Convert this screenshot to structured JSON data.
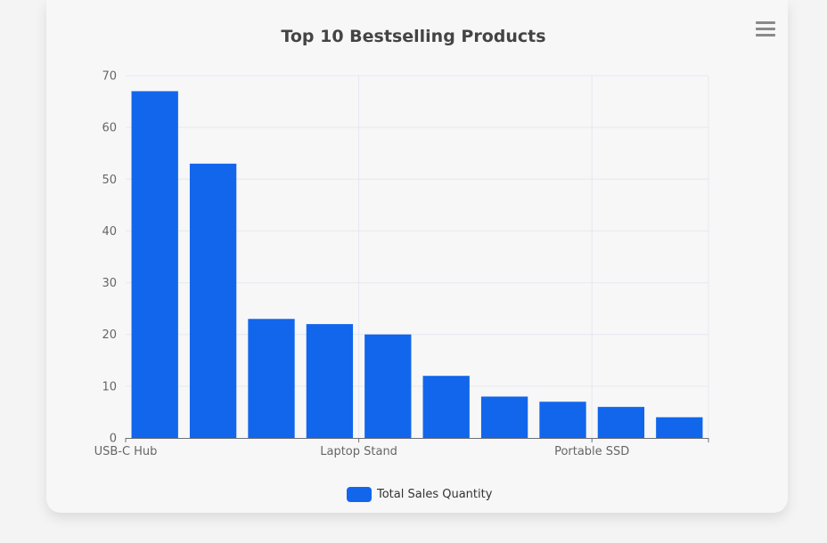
{
  "chart_data": {
    "type": "bar",
    "title": "Top 10 Bestselling Products",
    "categories": [
      "USB-C Hub",
      "",
      "",
      "",
      "Laptop Stand",
      "",
      "",
      "",
      "Portable SSD",
      ""
    ],
    "values": [
      67,
      53,
      23,
      22,
      20,
      12,
      8,
      7,
      6,
      4
    ],
    "series": [
      {
        "name": "Total Sales Quantity",
        "values": [
          67,
          53,
          23,
          22,
          20,
          12,
          8,
          7,
          6,
          4
        ]
      }
    ],
    "xlabel": "",
    "ylabel": "",
    "ylim": [
      0,
      70
    ],
    "yticks": [
      "0",
      "10",
      "20",
      "30",
      "40",
      "50",
      "60",
      "70"
    ],
    "legend_position": "bottom",
    "grid": true
  },
  "colors": {
    "bar": "#1166ec",
    "grid": "#e6e8ef",
    "axis": "#6e7079"
  },
  "toolbar": {
    "menu_icon": "hamburger-menu-icon"
  }
}
